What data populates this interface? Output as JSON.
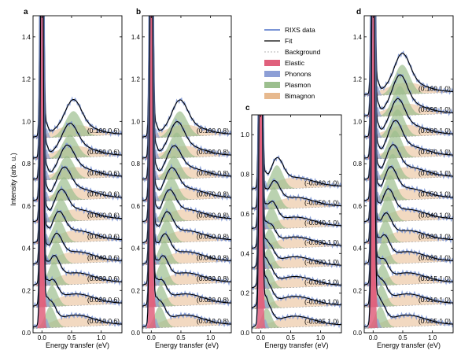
{
  "figure": {
    "ylabel": "Intensity (arb. u.)",
    "xlabel": "Energy transfer (eV)"
  },
  "legend": {
    "items": [
      {
        "key": "rixs",
        "label": "RIXS data",
        "color": "#7b95d6"
      },
      {
        "key": "fit",
        "label": "Fit",
        "color": "#000000"
      },
      {
        "key": "background",
        "label": "Background",
        "color": "#9a9a9a"
      },
      {
        "key": "elastic",
        "label": "Elastic",
        "color": "#e0607c"
      },
      {
        "key": "phonons",
        "label": "Phonons",
        "color": "#8d9fd6"
      },
      {
        "key": "plasmon",
        "label": "Plasmon",
        "color": "#9cbf8e"
      },
      {
        "key": "bimagnon",
        "label": "Bimagnon",
        "color": "#e7b98e"
      }
    ]
  },
  "chart_data": [
    {
      "type": "line",
      "panel": "a",
      "xlabel": "Energy transfer (eV)",
      "ylabel": "Intensity (arb. u.)",
      "xlim": [
        -0.15,
        1.35
      ],
      "ylim": [
        0.0,
        1.5
      ],
      "xticks": [
        "0.0",
        "0.5",
        "1.0"
      ],
      "yticks": [
        "0.0",
        "0.2",
        "0.4",
        "0.6",
        "0.8",
        "1.0",
        "1.2",
        "1.4"
      ],
      "series": [
        {
          "name": "(0.010,0.6)",
          "offset": 0.0,
          "plasmon_peak": 0.14,
          "plasmon_amp": 0.1
        },
        {
          "name": "(0.020,0.6)",
          "offset": 0.1,
          "plasmon_peak": 0.17,
          "plasmon_amp": 0.1
        },
        {
          "name": "(0.030,0.6)",
          "offset": 0.2,
          "plasmon_peak": 0.2,
          "plasmon_amp": 0.11
        },
        {
          "name": "(0.040,0.6)",
          "offset": 0.3,
          "plasmon_peak": 0.24,
          "plasmon_amp": 0.11
        },
        {
          "name": "(0.050,0.6)",
          "offset": 0.4,
          "plasmon_peak": 0.28,
          "plasmon_amp": 0.11
        },
        {
          "name": "(0.060,0.6)",
          "offset": 0.5,
          "plasmon_peak": 0.32,
          "plasmon_amp": 0.11
        },
        {
          "name": "(0.070,0.6)",
          "offset": 0.6,
          "plasmon_peak": 0.37,
          "plasmon_amp": 0.11
        },
        {
          "name": "(0.080,0.6)",
          "offset": 0.7,
          "plasmon_peak": 0.42,
          "plasmon_amp": 0.11
        },
        {
          "name": "(0.090,0.6)",
          "offset": 0.8,
          "plasmon_peak": 0.47,
          "plasmon_amp": 0.11
        },
        {
          "name": "(0.100,0.6)",
          "offset": 0.9,
          "plasmon_peak": 0.53,
          "plasmon_amp": 0.12
        }
      ]
    },
    {
      "type": "line",
      "panel": "b",
      "xlabel": "Energy transfer (eV)",
      "xlim": [
        -0.15,
        1.35
      ],
      "ylim": [
        0.0,
        1.5
      ],
      "xticks": [
        "0.0",
        "0.5",
        "1.0"
      ],
      "yticks": [
        "0.0",
        "0.2",
        "0.4",
        "0.6",
        "0.8",
        "1.0",
        "1.2",
        "1.4"
      ],
      "series": [
        {
          "name": "(0.010,0.8)",
          "offset": 0.0,
          "plasmon_peak": 0.14,
          "plasmon_amp": 0.1
        },
        {
          "name": "(0.020,0.8)",
          "offset": 0.1,
          "plasmon_peak": 0.16,
          "plasmon_amp": 0.1
        },
        {
          "name": "(0.030,0.8)",
          "offset": 0.2,
          "plasmon_peak": 0.19,
          "plasmon_amp": 0.11
        },
        {
          "name": "(0.040,0.8)",
          "offset": 0.3,
          "plasmon_peak": 0.22,
          "plasmon_amp": 0.11
        },
        {
          "name": "(0.050,0.8)",
          "offset": 0.4,
          "plasmon_peak": 0.26,
          "plasmon_amp": 0.11
        },
        {
          "name": "(0.060,0.8)",
          "offset": 0.5,
          "plasmon_peak": 0.3,
          "plasmon_amp": 0.11
        },
        {
          "name": "(0.070,0.8)",
          "offset": 0.6,
          "plasmon_peak": 0.34,
          "plasmon_amp": 0.11
        },
        {
          "name": "(0.080,0.8)",
          "offset": 0.7,
          "plasmon_peak": 0.38,
          "plasmon_amp": 0.11
        },
        {
          "name": "(0.090,0.8)",
          "offset": 0.8,
          "plasmon_peak": 0.43,
          "plasmon_amp": 0.12
        },
        {
          "name": "(0.100,0.8)",
          "offset": 0.9,
          "plasmon_peak": 0.48,
          "plasmon_amp": 0.12
        }
      ]
    },
    {
      "type": "line",
      "panel": "c",
      "xlabel": "Energy transfer (eV)",
      "xlim": [
        -0.15,
        1.35
      ],
      "ylim": [
        0.0,
        1.1
      ],
      "xticks": [
        "0.0",
        "0.5",
        "1.0"
      ],
      "yticks": [
        "0.0",
        "0.2",
        "0.4",
        "0.6",
        "0.8",
        "1.0"
      ],
      "series": [
        {
          "name": "(-0.005,1.0)",
          "offset": 0.0,
          "plasmon_peak": 0.1,
          "plasmon_amp": 0.1
        },
        {
          "name": "(-0.010,1.0)",
          "offset": 0.1,
          "plasmon_peak": 0.11,
          "plasmon_amp": 0.1
        },
        {
          "name": "(-0.015,1.0)",
          "offset": 0.2,
          "plasmon_peak": 0.12,
          "plasmon_amp": 0.1
        },
        {
          "name": "(-0.020,1.0)",
          "offset": 0.3,
          "plasmon_peak": 0.13,
          "plasmon_amp": 0.1
        },
        {
          "name": "(-0.030,1.0)",
          "offset": 0.4,
          "plasmon_peak": 0.15,
          "plasmon_amp": 0.1
        },
        {
          "name": "(-0.040,1.0)",
          "offset": 0.5,
          "plasmon_peak": 0.18,
          "plasmon_amp": 0.11
        },
        {
          "name": "(-0.050,1.0)",
          "offset": 0.6,
          "plasmon_peak": 0.22,
          "plasmon_amp": 0.11
        },
        {
          "name": "(-0.060,1.0)",
          "offset": 0.7,
          "plasmon_peak": 0.27,
          "plasmon_amp": 0.12
        }
      ]
    },
    {
      "type": "line",
      "panel": "d",
      "xlabel": "Energy transfer (eV)",
      "xlim": [
        -0.15,
        1.35
      ],
      "ylim": [
        0.0,
        1.5
      ],
      "xticks": [
        "0.0",
        "0.5",
        "1.0"
      ],
      "yticks": [
        "0.0",
        "0.2",
        "0.4",
        "0.6",
        "0.8",
        "1.0",
        "1.2",
        "1.4"
      ],
      "series": [
        {
          "name": "(0.005,1.0)",
          "offset": 0.0,
          "plasmon_peak": 0.12,
          "plasmon_amp": 0.1
        },
        {
          "name": "(0.010,1.0)",
          "offset": 0.1,
          "plasmon_peak": 0.14,
          "plasmon_amp": 0.1
        },
        {
          "name": "(0.015,1.0)",
          "offset": 0.2,
          "plasmon_peak": 0.16,
          "plasmon_amp": 0.1
        },
        {
          "name": "(0.020,1.0)",
          "offset": 0.3,
          "plasmon_peak": 0.18,
          "plasmon_amp": 0.11
        },
        {
          "name": "(0.030,1.0)",
          "offset": 0.4,
          "plasmon_peak": 0.21,
          "plasmon_amp": 0.11
        },
        {
          "name": "(0.040,1.0)",
          "offset": 0.5,
          "plasmon_peak": 0.25,
          "plasmon_amp": 0.12
        },
        {
          "name": "(0.050,1.0)",
          "offset": 0.6,
          "plasmon_peak": 0.29,
          "plasmon_amp": 0.12
        },
        {
          "name": "(0.060,1.0)",
          "offset": 0.7,
          "plasmon_peak": 0.33,
          "plasmon_amp": 0.12
        },
        {
          "name": "(0.070,1.0)",
          "offset": 0.8,
          "plasmon_peak": 0.37,
          "plasmon_amp": 0.13
        },
        {
          "name": "(0.080,1.0)",
          "offset": 0.9,
          "plasmon_peak": 0.41,
          "plasmon_amp": 0.13
        },
        {
          "name": "(0.090,1.0)",
          "offset": 1.0,
          "plasmon_peak": 0.45,
          "plasmon_amp": 0.14
        },
        {
          "name": "(0.100,1.0)",
          "offset": 1.1,
          "plasmon_peak": 0.49,
          "plasmon_amp": 0.14
        }
      ]
    }
  ]
}
